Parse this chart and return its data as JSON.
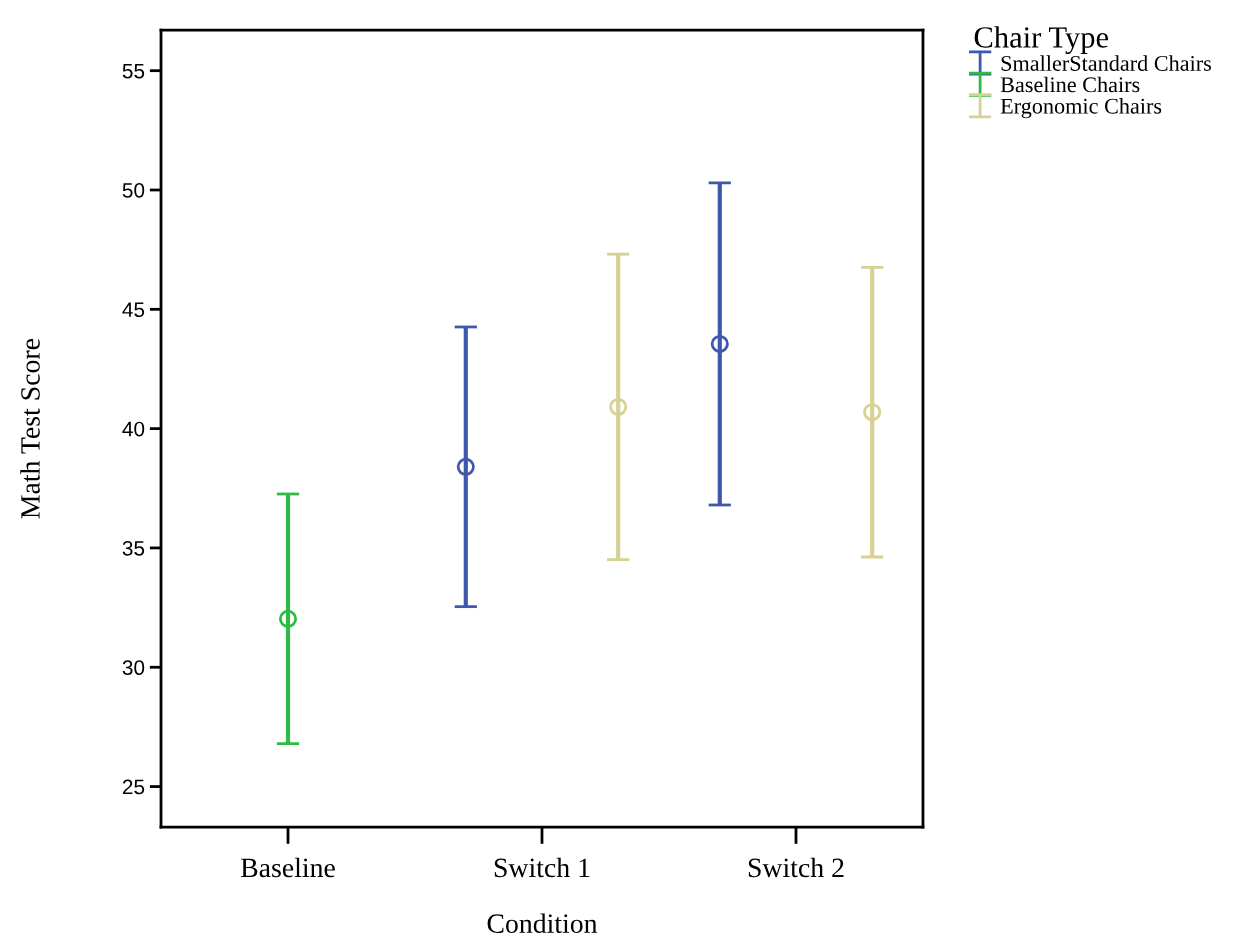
{
  "chart_data": {
    "type": "scatter",
    "xlabel": "Condition",
    "ylabel": "Math Test Score",
    "legend_title": "Chair Type",
    "categories": [
      "Baseline",
      "Switch 1",
      "Switch 2"
    ],
    "series": [
      {
        "name": "SmallerStandard Chairs",
        "color": "#3f57ad",
        "values": [
          null,
          38.4,
          43.55
        ],
        "errors": [
          null,
          [
            32.54,
            44.26
          ],
          [
            36.8,
            50.3
          ]
        ]
      },
      {
        "name": "Baseline Chairs",
        "color": "#2fba46",
        "values": [
          32.03,
          null,
          null
        ],
        "errors": [
          [
            26.8,
            37.26
          ],
          null,
          null
        ]
      },
      {
        "name": "Ergonomic Chairs",
        "color": "#d6d194",
        "values": [
          null,
          40.91,
          40.69
        ],
        "errors": [
          null,
          [
            34.51,
            47.31
          ],
          [
            34.62,
            46.76
          ]
        ]
      }
    ],
    "ylim": [
      23.3,
      56.7
    ],
    "yticks": [
      25,
      30,
      35,
      40,
      45,
      50,
      55
    ],
    "marker": "circle",
    "legend": "top right",
    "grid": false
  }
}
